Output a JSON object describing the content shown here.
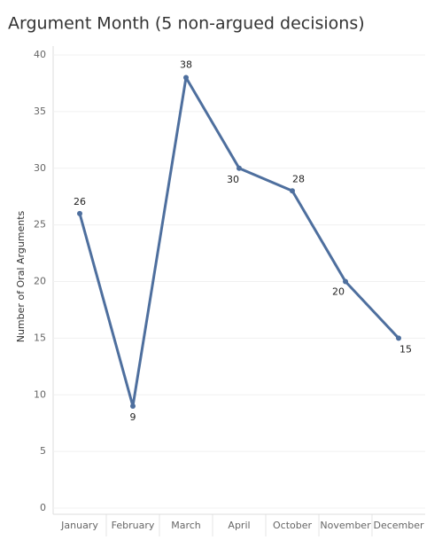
{
  "chart_data": {
    "type": "line",
    "title": "Argument Month (5 non-argued decisions)",
    "y_label": "Number of Oral Arguments",
    "categories": [
      "January",
      "February",
      "March",
      "April",
      "October",
      "November",
      "December"
    ],
    "values": [
      26,
      9,
      38,
      30,
      28,
      20,
      15
    ],
    "color": "#4e6f9e",
    "ylim": [
      0,
      40
    ],
    "yticks": [
      0,
      5,
      10,
      15,
      20,
      25,
      30,
      35,
      40
    ],
    "grid": true
  }
}
